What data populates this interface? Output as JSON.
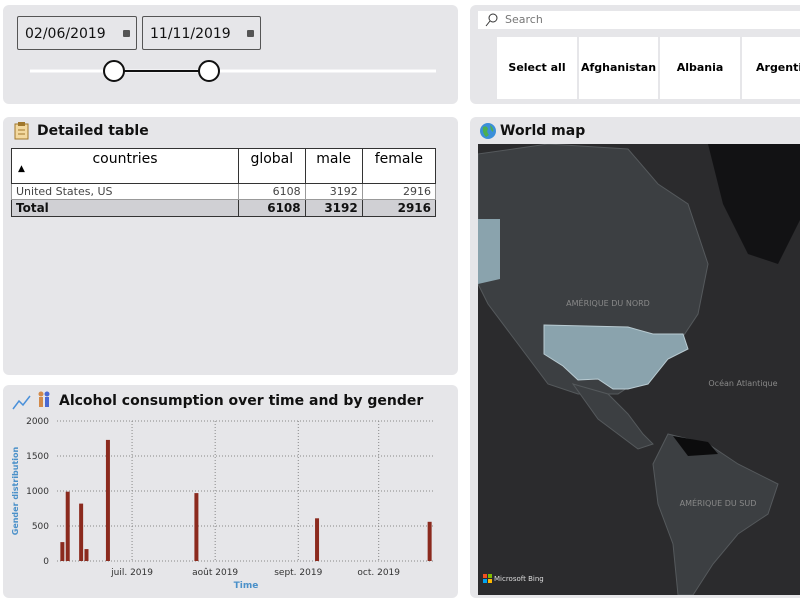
{
  "date_slicer": {
    "start": "02/06/2019",
    "end": "11/11/2019"
  },
  "country_slicer": {
    "search_placeholder": "Search",
    "items": [
      "Select all",
      "Afghanistan",
      "Albania",
      "Argentina"
    ]
  },
  "table": {
    "title": "Detailed table",
    "columns": [
      "countries",
      "global",
      "male",
      "female"
    ],
    "rows": [
      [
        "United States, US",
        6108,
        3192,
        2916
      ]
    ],
    "total": [
      "Total",
      6108,
      3192,
      2916
    ]
  },
  "map": {
    "title": "World map",
    "labels": [
      "AMÉRIQUE DU NORD",
      "Océan Atlantique",
      "AMÉRIQUE DU SUD"
    ],
    "attribution": "Microsoft Bing"
  },
  "chart_data": {
    "type": "bar",
    "title": "Alcohol consumption over time and by gender",
    "x_label": "Time",
    "y_label": "Gender distribution",
    "x": [
      "2019-06-05",
      "2019-06-07",
      "2019-06-12",
      "2019-06-14",
      "2019-06-22",
      "2019-07-25",
      "2019-09-08",
      "2019-10-20"
    ],
    "values": [
      270,
      990,
      820,
      170,
      1730,
      970,
      610,
      560
    ],
    "color": "#8b2a1e",
    "xlim": [
      "2019-06-03",
      "2019-10-22"
    ],
    "xticks": [
      {
        "value": "2019-07-01",
        "label": "juil. 2019"
      },
      {
        "value": "2019-08-01",
        "label": "août 2019"
      },
      {
        "value": "2019-09-01",
        "label": "sept. 2019"
      },
      {
        "value": "2019-10-01",
        "label": "oct. 2019"
      }
    ],
    "ylim": [
      0,
      2000
    ],
    "yticks": [
      0,
      500,
      1000,
      1500,
      2000
    ],
    "grid": true
  }
}
